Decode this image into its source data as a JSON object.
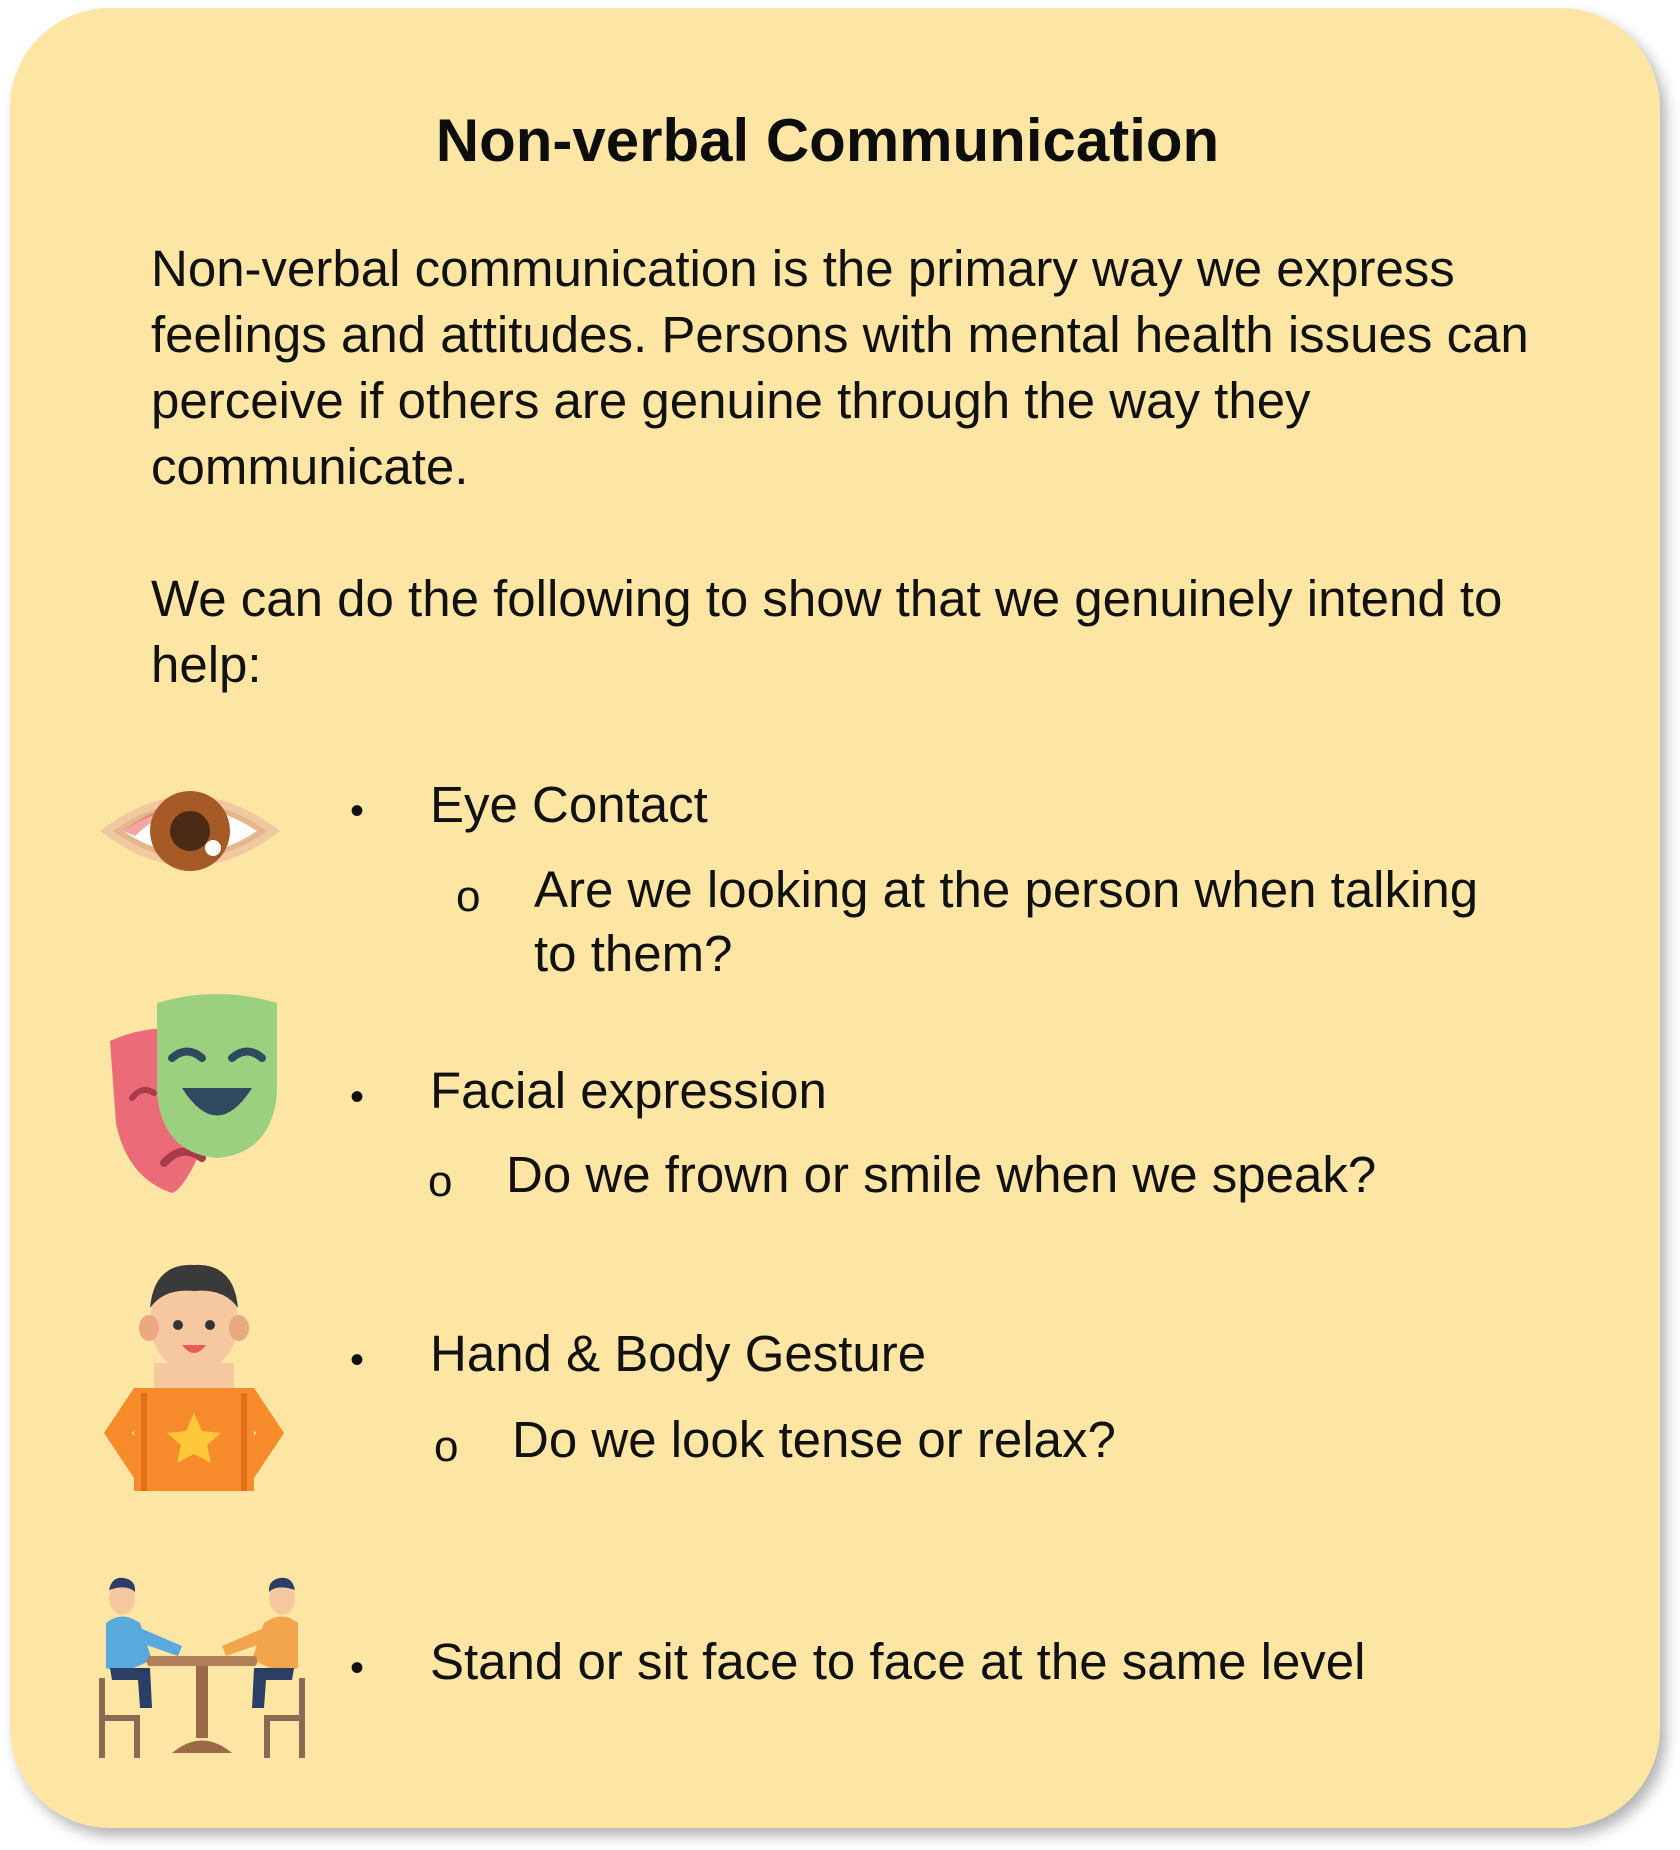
{
  "title": "Non-verbal Communication",
  "intro": "Non-verbal communication is the primary way we express feelings and attitudes. Persons with mental health issues can perceive if others are genuine through the way they communicate.",
  "lead": "We can do the following to show that we genuinely intend to help:",
  "bullet_symbol": "•",
  "sub_symbol": "o",
  "items": [
    {
      "label": "Eye Contact",
      "sub": "Are we looking at the person when talking to them?",
      "icon": "eye-icon"
    },
    {
      "label": "Facial expression",
      "sub": "Do we frown or smile when we speak?",
      "icon": "theater-masks-icon"
    },
    {
      "label": "Hand & Body Gesture",
      "sub": "Do we look tense or relax?",
      "icon": "person-hands-on-hips-icon"
    },
    {
      "label": "Stand or sit face to face at the same level",
      "icon": "two-people-at-table-icon"
    }
  ],
  "colors": {
    "card_background": "#fde6a4",
    "text": "#111111"
  }
}
